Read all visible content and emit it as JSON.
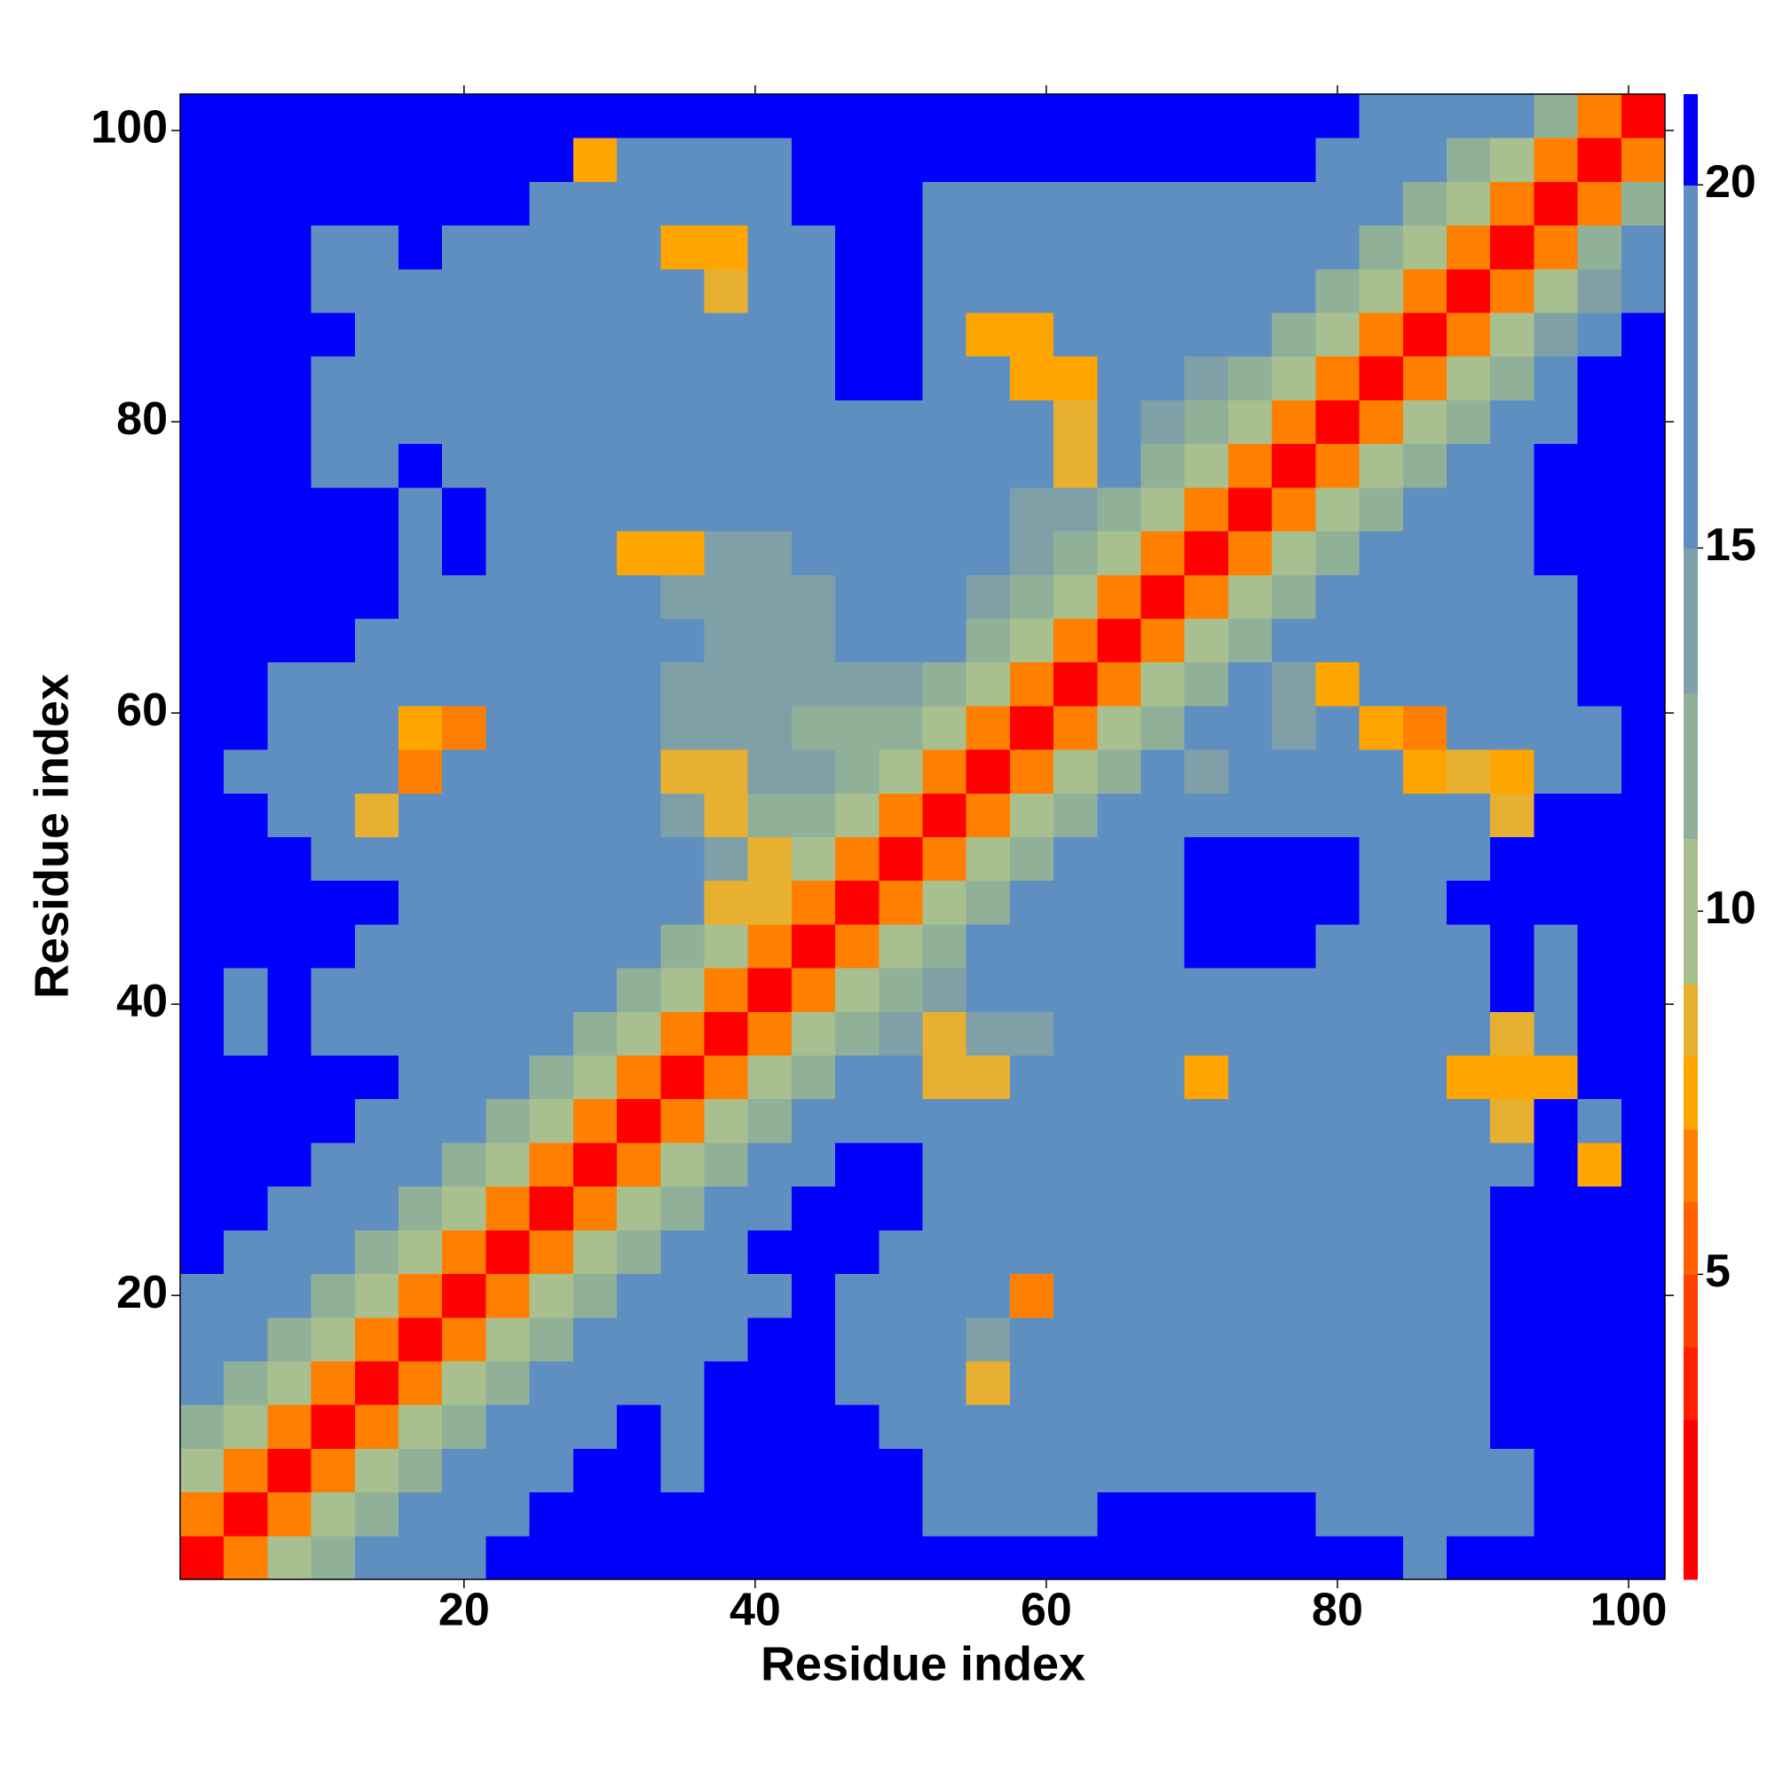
{
  "chart_data": {
    "type": "heatmap",
    "xlabel": "Residue index",
    "ylabel": "Residue index",
    "x": [
      2,
      5,
      8,
      11,
      14,
      17,
      20,
      23,
      26,
      29,
      32,
      35,
      38,
      41,
      44,
      47,
      50,
      53,
      56,
      59,
      62,
      65,
      68,
      71,
      74,
      77,
      80,
      83,
      86,
      89,
      92,
      95,
      98,
      101
    ],
    "y": [
      2,
      5,
      8,
      11,
      14,
      17,
      20,
      23,
      26,
      29,
      32,
      35,
      38,
      41,
      44,
      47,
      50,
      53,
      56,
      59,
      62,
      65,
      68,
      71,
      74,
      77,
      80,
      83,
      86,
      89,
      92,
      95,
      98,
      101
    ],
    "xlim": [
      0.5,
      102.5
    ],
    "ylim": [
      0.5,
      102.5
    ],
    "xticks": [
      20,
      40,
      60,
      80,
      100
    ],
    "yticks": [
      20,
      40,
      60,
      80,
      100
    ],
    "zlim": [
      0.8,
      21.25
    ],
    "zticks": [
      5,
      10,
      15,
      20
    ],
    "colorscale": {
      "bounds": [
        0.8,
        3,
        4,
        5,
        6,
        7,
        8,
        9,
        11,
        13,
        15,
        20,
        21.25
      ],
      "colors": [
        "#ff0000",
        "#ff2000",
        "#ff4000",
        "#ff6000",
        "#ff8000",
        "#ffa500",
        "#e8b030",
        "#a8c090",
        "#90b098",
        "#80a0a8",
        "#5f8fc0",
        "#0000ff"
      ]
    },
    "z": [
      [
        2,
        6,
        9,
        12,
        15,
        17,
        18,
        20,
        21,
        21,
        21,
        21,
        21,
        21,
        21,
        21,
        21,
        21,
        21,
        21,
        21,
        21,
        21,
        21,
        21,
        21,
        21,
        21,
        19,
        21,
        21,
        21,
        21,
        21
      ],
      [
        6,
        2,
        6,
        9,
        12,
        15,
        17,
        18,
        20,
        21,
        21,
        21,
        21,
        21,
        21,
        21,
        21,
        19,
        19,
        19,
        19,
        20,
        20,
        20,
        20,
        20,
        19,
        19,
        19,
        19,
        19,
        21,
        21,
        21
      ],
      [
        9,
        6,
        2,
        6,
        9,
        12,
        15,
        17,
        19,
        21,
        21,
        19,
        21,
        21,
        21,
        21,
        21,
        17,
        17,
        17,
        17,
        19,
        19,
        19,
        19,
        19,
        18,
        18,
        18,
        18,
        18,
        21,
        21,
        21
      ],
      [
        12,
        9,
        6,
        2,
        6,
        9,
        12,
        15,
        17,
        18,
        20,
        18,
        21,
        21,
        21,
        20,
        18,
        16,
        15,
        16,
        17,
        19,
        18,
        19,
        18,
        19,
        18,
        18,
        19,
        19,
        20,
        21,
        21,
        21
      ],
      [
        15,
        12,
        9,
        6,
        2,
        6,
        9,
        12,
        15,
        17,
        19,
        18,
        20,
        21,
        21,
        19,
        17,
        15,
        8,
        15,
        17,
        18,
        18,
        19,
        18,
        18,
        17,
        18,
        18,
        19,
        20,
        21,
        21,
        21
      ],
      [
        17,
        15,
        12,
        9,
        6,
        2,
        6,
        9,
        12,
        15,
        17,
        18,
        19,
        20,
        21,
        18,
        16,
        15,
        14,
        16,
        18,
        19,
        18,
        18,
        19,
        18,
        18,
        18,
        19,
        19,
        21,
        21,
        21,
        21
      ],
      [
        18,
        17,
        15,
        12,
        9,
        6,
        2,
        6,
        9,
        12,
        15,
        17,
        18,
        19,
        20,
        18,
        16,
        15,
        15,
        6,
        16,
        18,
        17,
        18,
        18,
        17,
        18,
        18,
        17,
        19,
        20,
        21,
        21,
        21
      ],
      [
        20,
        18,
        17,
        15,
        12,
        9,
        6,
        2,
        6,
        9,
        12,
        15,
        17,
        21,
        21,
        21,
        16,
        16,
        15,
        16,
        17,
        17,
        18,
        18,
        17,
        18,
        18,
        18,
        19,
        19,
        20,
        21,
        21,
        21
      ],
      [
        21,
        20,
        18,
        17,
        15,
        12,
        9,
        6,
        2,
        6,
        9,
        12,
        15,
        18,
        21,
        21,
        21,
        17,
        16,
        16,
        16,
        17,
        17,
        18,
        18,
        18,
        17,
        18,
        19,
        19,
        21,
        21,
        21,
        21
      ],
      [
        21,
        21,
        20,
        18,
        17,
        15,
        12,
        9,
        6,
        2,
        6,
        9,
        12,
        15,
        18,
        21,
        21,
        18,
        16,
        15,
        16,
        16,
        17,
        17,
        18,
        18,
        18,
        18,
        19,
        19,
        18,
        20,
        7,
        21
      ],
      [
        21,
        21,
        21,
        20,
        18,
        17,
        15,
        12,
        9,
        6,
        2,
        6,
        9,
        12,
        15,
        17,
        18,
        16,
        15,
        15,
        16,
        16,
        17,
        17,
        18,
        16,
        17,
        18,
        18,
        19,
        8,
        20,
        19,
        21
      ],
      [
        21,
        21,
        20,
        21,
        20,
        18,
        17,
        15,
        12,
        9,
        6,
        2,
        6,
        9,
        12,
        15,
        16,
        8,
        8,
        15,
        16,
        15,
        16,
        7,
        17,
        17,
        18,
        18,
        18,
        7,
        7,
        7,
        20,
        21
      ],
      [
        20,
        19,
        20,
        19,
        19,
        18,
        17,
        16,
        15,
        12,
        9,
        6,
        2,
        6,
        9,
        12,
        14,
        8,
        14,
        13,
        15,
        15,
        16,
        16,
        17,
        17,
        18,
        18,
        17,
        18,
        8,
        19,
        20,
        21
      ],
      [
        21,
        19,
        21,
        19,
        18,
        18,
        18,
        17,
        16,
        15,
        12,
        9,
        6,
        2,
        6,
        9,
        12,
        14,
        15,
        15,
        15,
        16,
        16,
        17,
        18,
        18,
        19,
        19,
        18,
        19,
        20,
        19,
        21,
        21
      ],
      [
        21,
        21,
        21,
        20,
        19,
        18,
        18,
        17,
        17,
        16,
        15,
        12,
        9,
        6,
        2,
        6,
        9,
        12,
        15,
        16,
        15,
        16,
        18,
        21,
        21,
        20,
        18,
        17,
        19,
        19,
        20,
        19,
        21,
        21
      ],
      [
        21,
        21,
        21,
        21,
        20,
        19,
        18,
        18,
        17,
        16,
        15,
        15,
        8,
        8,
        6,
        2,
        6,
        9,
        12,
        15,
        16,
        16,
        18,
        21,
        21,
        21,
        20,
        18,
        19,
        20,
        21,
        21,
        21,
        21
      ],
      [
        21,
        21,
        20,
        19,
        18,
        18,
        19,
        18,
        17,
        17,
        16,
        15,
        14,
        8,
        9,
        6,
        2,
        6,
        9,
        12,
        15,
        16,
        17,
        21,
        21,
        21,
        20,
        19,
        19,
        19,
        21,
        20,
        21,
        21
      ],
      [
        21,
        20,
        19,
        18,
        8,
        17,
        18,
        17,
        16,
        16,
        15,
        14,
        8,
        12,
        12,
        9,
        6,
        2,
        6,
        9,
        12,
        15,
        16,
        17,
        17,
        16,
        17,
        16,
        17,
        18,
        8,
        20,
        21,
        21
      ],
      [
        21,
        19,
        19,
        17,
        17,
        6,
        17,
        16,
        16,
        15,
        15,
        8,
        8,
        13,
        13,
        12,
        9,
        6,
        2,
        6,
        9,
        12,
        15,
        14,
        15,
        16,
        17,
        16,
        7,
        8,
        7,
        18,
        19,
        21
      ],
      [
        21,
        20,
        18,
        17,
        17,
        7,
        6,
        17,
        16,
        15,
        15,
        14,
        14,
        13,
        12,
        12,
        12,
        9,
        6,
        2,
        6,
        9,
        12,
        15,
        15,
        14,
        16,
        7,
        6,
        16,
        17,
        18,
        19,
        21
      ],
      [
        21,
        20,
        19,
        18,
        17,
        17,
        18,
        17,
        16,
        15,
        15,
        14,
        14,
        14,
        13,
        13,
        14,
        12,
        9,
        6,
        2,
        6,
        9,
        12,
        15,
        14,
        7,
        15,
        16,
        15,
        16,
        18,
        20,
        21
      ],
      [
        21,
        21,
        21,
        20,
        19,
        18,
        19,
        18,
        17,
        16,
        15,
        15,
        14,
        14,
        14,
        15,
        15,
        15,
        12,
        9,
        6,
        2,
        6,
        9,
        12,
        15,
        15,
        16,
        16,
        16,
        17,
        19,
        20,
        21
      ],
      [
        21,
        21,
        21,
        21,
        20,
        19,
        19,
        18,
        18,
        17,
        15,
        14,
        14,
        14,
        14,
        15,
        15,
        15,
        14,
        12,
        9,
        6,
        2,
        6,
        9,
        12,
        15,
        16,
        17,
        17,
        18,
        19,
        21,
        21
      ],
      [
        21,
        21,
        21,
        21,
        20,
        19,
        20,
        19,
        18,
        17,
        7,
        7,
        14,
        14,
        15,
        15,
        16,
        15,
        15,
        14,
        12,
        9,
        6,
        2,
        6,
        9,
        12,
        15,
        17,
        18,
        19,
        21,
        21,
        21
      ],
      [
        21,
        21,
        21,
        21,
        20,
        19,
        20,
        19,
        18,
        17,
        16,
        15,
        15,
        16,
        16,
        15,
        15,
        15,
        15,
        14,
        14,
        12,
        9,
        6,
        2,
        6,
        9,
        12,
        15,
        17,
        19,
        21,
        21,
        21
      ],
      [
        21,
        20,
        21,
        19,
        19,
        20,
        19,
        18,
        18,
        17,
        17,
        16,
        15,
        16,
        17,
        17,
        16,
        15,
        15,
        15,
        8,
        15,
        12,
        9,
        6,
        2,
        6,
        9,
        12,
        15,
        18,
        20,
        21,
        21
      ],
      [
        21,
        21,
        20,
        19,
        19,
        19,
        19,
        19,
        18,
        18,
        17,
        17,
        16,
        17,
        18,
        19,
        18,
        16,
        16,
        15,
        8,
        15,
        14,
        12,
        9,
        6,
        2,
        6,
        9,
        12,
        16,
        19,
        21,
        21
      ],
      [
        21,
        21,
        21,
        19,
        18,
        19,
        19,
        18,
        18,
        18,
        17,
        16,
        16,
        17,
        19,
        21,
        21,
        16,
        16,
        7,
        7,
        15,
        15,
        14,
        12,
        9,
        6,
        2,
        6,
        9,
        12,
        17,
        20,
        21
      ],
      [
        21,
        21,
        21,
        20,
        18,
        19,
        18,
        18,
        18,
        17,
        17,
        17,
        16,
        17,
        19,
        21,
        21,
        17,
        7,
        7,
        15,
        16,
        16,
        16,
        15,
        12,
        9,
        6,
        2,
        6,
        9,
        13,
        18,
        21
      ],
      [
        21,
        21,
        20,
        19,
        18,
        19,
        18,
        18,
        18,
        17,
        17,
        16,
        8,
        17,
        18,
        21,
        21,
        18,
        15,
        16,
        16,
        16,
        17,
        17,
        16,
        15,
        12,
        9,
        6,
        2,
        6,
        9,
        14,
        19
      ],
      [
        21,
        21,
        20,
        19,
        19,
        20,
        19,
        18,
        18,
        18,
        17,
        7,
        7,
        17,
        18,
        21,
        21,
        18,
        17,
        17,
        17,
        18,
        18,
        17,
        17,
        16,
        15,
        12,
        9,
        6,
        2,
        6,
        12,
        16
      ],
      [
        21,
        21,
        21,
        20,
        20,
        20,
        21,
        20,
        19,
        19,
        18,
        18,
        17,
        18,
        20,
        21,
        21,
        19,
        18,
        18,
        18,
        19,
        19,
        18,
        18,
        17,
        16,
        15,
        12,
        9,
        6,
        2,
        6,
        12
      ],
      [
        21,
        21,
        21,
        21,
        21,
        21,
        21,
        21,
        21,
        7,
        19,
        18,
        19,
        19,
        21,
        21,
        21,
        21,
        20,
        20,
        21,
        21,
        21,
        21,
        21,
        20,
        19,
        18,
        15,
        12,
        9,
        6,
        2,
        6
      ],
      [
        21,
        21,
        21,
        21,
        21,
        21,
        21,
        21,
        21,
        21,
        21,
        21,
        21,
        21,
        21,
        21,
        21,
        21,
        21,
        21,
        21,
        21,
        21,
        21,
        21,
        21,
        21,
        19,
        18,
        17,
        15,
        12,
        6,
        2
      ]
    ]
  }
}
